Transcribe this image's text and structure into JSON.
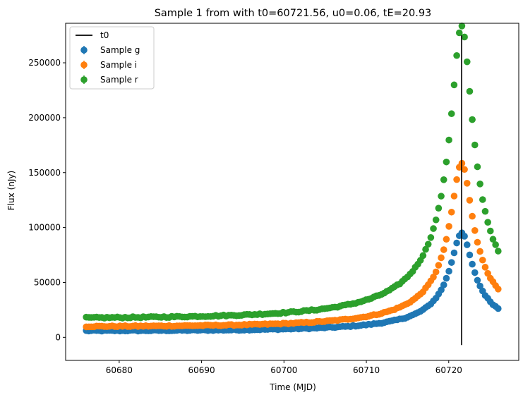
{
  "chart_data": {
    "type": "scatter",
    "title": "Sample 1 from with t0=60721.56, u0=0.06, tE=20.93",
    "xlabel": "Time (MJD)",
    "ylabel": "Flux (nJy)",
    "xlim": [
      60673.5,
      60728.5
    ],
    "ylim": [
      -21000,
      286000
    ],
    "x_ticks": [
      60680,
      60690,
      60700,
      60710,
      60720
    ],
    "x_tick_labels": [
      "60680",
      "60690",
      "60700",
      "60710",
      "60720"
    ],
    "y_ticks": [
      0,
      50000,
      100000,
      150000,
      200000,
      250000
    ],
    "y_tick_labels": [
      "0",
      "50000",
      "100000",
      "150000",
      "200000",
      "250000"
    ],
    "grid": false,
    "legend_position": "top-left",
    "model": {
      "t0": 60721.56,
      "u0": 0.06,
      "tE": 20.93,
      "t_start": 60676.0,
      "t_end": 60726.0,
      "n_points": 160,
      "note_ignore": ""
    },
    "vline": {
      "name": "t0",
      "x": 60721.56,
      "y_range": [
        -7000,
        275000
      ],
      "color": "#000000"
    },
    "series": [
      {
        "name": "Sample g",
        "color": "#1f77b4",
        "baseline": 5700,
        "jitter": 500
      },
      {
        "name": "Sample i",
        "color": "#ff7f0e",
        "baseline": 9500,
        "jitter": 500
      },
      {
        "name": "Sample r",
        "color": "#2ca02c",
        "baseline": 17000,
        "jitter": 600
      }
    ],
    "legend": [
      "t0",
      "Sample g",
      "Sample i",
      "Sample r"
    ]
  }
}
